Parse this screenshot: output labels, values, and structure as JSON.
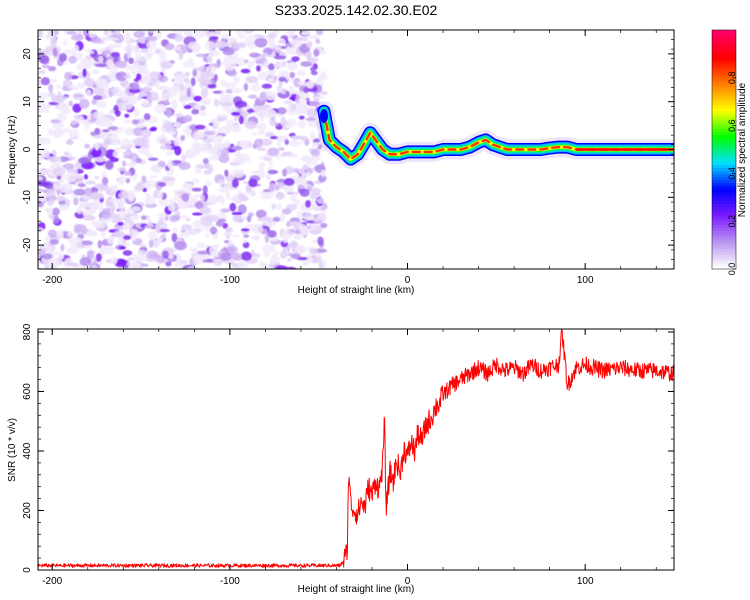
{
  "figure_title": "S233.2025.142.02.30.E02",
  "chart_data": [
    {
      "type": "heatmap",
      "title": "S233.2025.142.02.30.E02",
      "xlabel": "Height of straight line (km)",
      "ylabel": "Frequency (Hz)",
      "xlim": [
        -208,
        150
      ],
      "ylim": [
        -25,
        25
      ],
      "x_ticks": [
        -200,
        -100,
        0,
        100
      ],
      "y_ticks": [
        -20,
        -10,
        0,
        10,
        20
      ],
      "colorbar": {
        "label": "Normalized spectral amplitude",
        "range": [
          0,
          1
        ],
        "ticks": [
          "0.0",
          "0.2",
          "0.4",
          "0.6",
          "0.8"
        ],
        "colors": [
          "#ffffff",
          "#b994f0",
          "#7a1aff",
          "#0000ff",
          "#00e0ff",
          "#00ff00",
          "#ffff00",
          "#ff7f00",
          "#ff0000",
          "#ff0066"
        ]
      },
      "noise_region": {
        "x_range": [
          -208,
          -47
        ],
        "freq_range": [
          -25,
          25
        ],
        "amplitude_range": [
          0.0,
          0.15
        ]
      },
      "ridge": {
        "x": [
          -47,
          -44,
          -40,
          -36,
          -32,
          -28,
          -24,
          -21,
          -18,
          -14,
          -10,
          -5,
          0,
          5,
          10,
          15,
          20,
          25,
          30,
          35,
          40,
          44,
          48,
          52,
          56,
          60,
          65,
          70,
          75,
          80,
          85,
          90,
          95,
          100,
          110,
          120,
          130,
          140,
          150
        ],
        "freq": [
          8,
          2,
          0.5,
          -0.5,
          -2,
          -1,
          1.5,
          3.5,
          2,
          0,
          -1,
          -1,
          -0.5,
          -0.5,
          -0.5,
          -0.5,
          0,
          0,
          0,
          0.5,
          1.5,
          2,
          1,
          0.5,
          0,
          0,
          0,
          0,
          0,
          0.3,
          0.5,
          0.5,
          0,
          0,
          0,
          0,
          0,
          0,
          0
        ]
      }
    },
    {
      "type": "line",
      "xlabel": "Height of straight line (km)",
      "ylabel": "SNR (10 * v/v)",
      "xlim": [
        -208,
        150
      ],
      "ylim": [
        0,
        810
      ],
      "x_ticks": [
        -200,
        -100,
        0,
        100
      ],
      "y_ticks": [
        0,
        200,
        400,
        600,
        800
      ],
      "color": "#ff0000",
      "series": [
        {
          "name": "SNR",
          "x": [
            -208,
            -190,
            -170,
            -150,
            -130,
            -110,
            -90,
            -70,
            -50,
            -38,
            -36,
            -34,
            -33,
            -32,
            -30,
            -28,
            -26,
            -24,
            -22,
            -20,
            -18,
            -16,
            -14,
            -13,
            -12,
            -10,
            -8,
            -6,
            -4,
            -2,
            0,
            2,
            4,
            6,
            8,
            10,
            12,
            14,
            16,
            18,
            20,
            25,
            30,
            35,
            40,
            45,
            50,
            55,
            60,
            65,
            70,
            75,
            80,
            85,
            87,
            90,
            95,
            100,
            110,
            120,
            130,
            140,
            150
          ],
          "values": [
            15,
            15,
            15,
            15,
            15,
            15,
            15,
            15,
            15,
            15,
            30,
            60,
            350,
            220,
            200,
            190,
            230,
            210,
            280,
            250,
            300,
            270,
            350,
            500,
            200,
            330,
            300,
            370,
            320,
            410,
            380,
            430,
            400,
            460,
            430,
            480,
            500,
            520,
            550,
            560,
            590,
            620,
            640,
            660,
            680,
            660,
            690,
            670,
            680,
            660,
            690,
            670,
            680,
            690,
            800,
            620,
            680,
            690,
            670,
            680,
            670,
            670,
            660
          ]
        }
      ]
    }
  ]
}
